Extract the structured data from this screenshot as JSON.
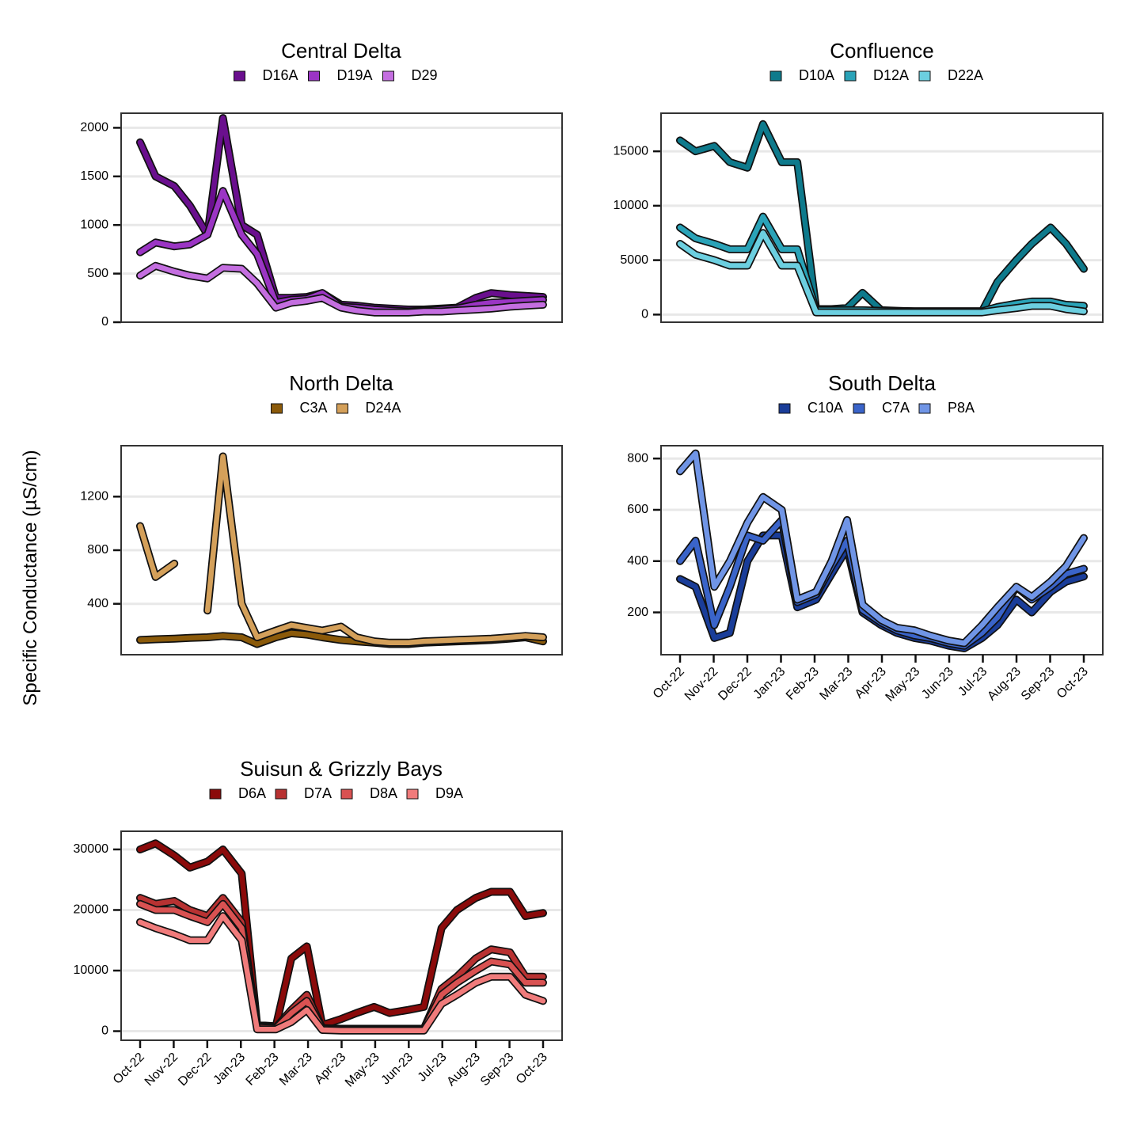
{
  "y_axis_label": "Specific Conductance (µS/cm)",
  "x_tick_labels": [
    "Oct-22",
    "Nov-22",
    "Dec-22",
    "Jan-23",
    "Feb-23",
    "Mar-23",
    "Apr-23",
    "May-23",
    "Jun-23",
    "Jul-23",
    "Aug-23",
    "Sep-23",
    "Oct-23"
  ],
  "chart_data": [
    {
      "type": "line",
      "title": "Central Delta",
      "ylabel": "Specific Conductance (µS/cm)",
      "ylim": [
        0,
        2150
      ],
      "yticks": [
        0,
        500,
        1000,
        1500,
        2000
      ],
      "grid": true,
      "legend_position": "top",
      "show_x_ticks": false,
      "x": [
        "2022-10-01",
        "2022-10-15",
        "2022-11-01",
        "2022-11-15",
        "2022-12-01",
        "2022-12-15",
        "2023-01-01",
        "2023-01-15",
        "2023-02-01",
        "2023-02-15",
        "2023-03-01",
        "2023-03-15",
        "2023-04-01",
        "2023-04-15",
        "2023-05-01",
        "2023-05-15",
        "2023-06-01",
        "2023-06-15",
        "2023-07-01",
        "2023-07-15",
        "2023-08-01",
        "2023-08-15",
        "2023-09-01",
        "2023-09-15",
        "2023-10-01"
      ],
      "series": [
        {
          "name": "D16A",
          "color": "#6a0f8e",
          "values": [
            1850,
            1500,
            1400,
            1200,
            900,
            2100,
            1000,
            900,
            250,
            250,
            260,
            300,
            180,
            170,
            150,
            140,
            130,
            130,
            140,
            150,
            250,
            300,
            280,
            270,
            260
          ]
        },
        {
          "name": "D19A",
          "color": "#9b35c4",
          "values": [
            720,
            820,
            780,
            800,
            900,
            1350,
            900,
            700,
            200,
            230,
            240,
            300,
            160,
            150,
            130,
            120,
            110,
            120,
            130,
            140,
            180,
            200,
            210,
            220,
            230
          ]
        },
        {
          "name": "D29",
          "color": "#c46ee0",
          "values": [
            480,
            580,
            520,
            480,
            450,
            560,
            550,
            400,
            150,
            200,
            220,
            250,
            150,
            120,
            100,
            100,
            100,
            110,
            110,
            120,
            130,
            140,
            160,
            170,
            180
          ]
        }
      ]
    },
    {
      "type": "line",
      "title": "Confluence",
      "ylabel": "Specific Conductance (µS/cm)",
      "ylim": [
        -700,
        18500
      ],
      "yticks": [
        0,
        5000,
        10000,
        15000
      ],
      "grid": true,
      "legend_position": "top",
      "show_x_ticks": false,
      "x": [
        "2022-10-01",
        "2022-10-15",
        "2022-11-01",
        "2022-11-15",
        "2022-12-01",
        "2022-12-15",
        "2023-01-01",
        "2023-01-15",
        "2023-02-01",
        "2023-02-15",
        "2023-03-01",
        "2023-03-15",
        "2023-04-01",
        "2023-04-15",
        "2023-05-01",
        "2023-05-15",
        "2023-06-01",
        "2023-06-15",
        "2023-07-01",
        "2023-07-15",
        "2023-08-01",
        "2023-08-15",
        "2023-09-01",
        "2023-09-15",
        "2023-10-01"
      ],
      "series": [
        {
          "name": "D10A",
          "color": "#0e7a8c",
          "values": [
            16000,
            15000,
            15500,
            14000,
            13500,
            17500,
            14000,
            14000,
            500,
            500,
            600,
            2000,
            400,
            350,
            300,
            300,
            300,
            300,
            300,
            3000,
            5000,
            6500,
            8000,
            6500,
            4200
          ]
        },
        {
          "name": "D12A",
          "color": "#2aa3b8",
          "values": [
            8000,
            7000,
            6500,
            6000,
            6000,
            9000,
            6000,
            6000,
            400,
            400,
            400,
            400,
            350,
            300,
            300,
            300,
            300,
            300,
            300,
            700,
            1000,
            1200,
            1200,
            900,
            800
          ]
        },
        {
          "name": "D22A",
          "color": "#6ccfe0",
          "values": [
            6500,
            5500,
            5000,
            4500,
            4500,
            7500,
            4500,
            4500,
            200,
            200,
            200,
            200,
            200,
            200,
            200,
            200,
            200,
            200,
            200,
            400,
            600,
            800,
            800,
            500,
            300
          ]
        }
      ]
    },
    {
      "type": "line",
      "title": "North Delta",
      "ylabel": "Specific Conductance (µS/cm)",
      "ylim": [
        20,
        1580
      ],
      "yticks": [
        400,
        800,
        1200
      ],
      "grid": true,
      "legend_position": "top",
      "show_x_ticks": false,
      "x": [
        "2022-10-01",
        "2022-10-15",
        "2022-11-01",
        "2022-11-15",
        "2022-12-01",
        "2022-12-15",
        "2023-01-01",
        "2023-01-15",
        "2023-02-01",
        "2023-02-15",
        "2023-03-01",
        "2023-03-15",
        "2023-04-01",
        "2023-04-15",
        "2023-05-01",
        "2023-05-15",
        "2023-06-01",
        "2023-06-15",
        "2023-07-01",
        "2023-07-15",
        "2023-08-01",
        "2023-08-15",
        "2023-09-01",
        "2023-09-15",
        "2023-10-01"
      ],
      "series": [
        {
          "name": "C3A",
          "color": "#8b5a0a",
          "values": [
            130,
            135,
            140,
            145,
            150,
            160,
            150,
            100,
            150,
            180,
            170,
            150,
            130,
            120,
            110,
            100,
            100,
            110,
            115,
            120,
            125,
            130,
            140,
            150,
            120
          ]
        },
        {
          "name": "D24A",
          "color": "#d4a05a",
          "values": [
            980,
            600,
            700,
            null,
            350,
            1500,
            400,
            150,
            200,
            240,
            220,
            200,
            230,
            150,
            120,
            110,
            110,
            120,
            125,
            130,
            135,
            140,
            150,
            160,
            150
          ]
        }
      ]
    },
    {
      "type": "line",
      "title": "South Delta",
      "ylabel": "Specific Conductance (µS/cm)",
      "ylim": [
        35,
        850
      ],
      "yticks": [
        200,
        400,
        600,
        800
      ],
      "grid": true,
      "legend_position": "top",
      "show_x_ticks": true,
      "x": [
        "2022-10-01",
        "2022-10-15",
        "2022-11-01",
        "2022-11-15",
        "2022-12-01",
        "2022-12-15",
        "2023-01-01",
        "2023-01-15",
        "2023-02-01",
        "2023-02-15",
        "2023-03-01",
        "2023-03-15",
        "2023-04-01",
        "2023-04-15",
        "2023-05-01",
        "2023-05-15",
        "2023-06-01",
        "2023-06-15",
        "2023-07-01",
        "2023-07-15",
        "2023-08-01",
        "2023-08-15",
        "2023-09-01",
        "2023-09-15",
        "2023-10-01"
      ],
      "series": [
        {
          "name": "C10A",
          "color": "#1a3d99",
          "values": [
            330,
            300,
            100,
            120,
            400,
            500,
            500,
            220,
            250,
            350,
            450,
            200,
            150,
            120,
            100,
            90,
            70,
            60,
            100,
            150,
            250,
            200,
            280,
            320,
            340
          ]
        },
        {
          "name": "C7A",
          "color": "#3a64c9",
          "values": [
            400,
            480,
            150,
            300,
            500,
            480,
            560,
            240,
            270,
            380,
            480,
            210,
            160,
            130,
            110,
            100,
            80,
            70,
            120,
            180,
            300,
            250,
            300,
            350,
            370
          ]
        },
        {
          "name": "P8A",
          "color": "#7095e6",
          "values": [
            750,
            820,
            300,
            400,
            550,
            650,
            600,
            250,
            280,
            400,
            560,
            230,
            170,
            140,
            130,
            110,
            90,
            80,
            150,
            220,
            300,
            260,
            320,
            380,
            490
          ]
        }
      ]
    },
    {
      "type": "line",
      "title": "Suisun & Grizzly Bays",
      "ylabel": "Specific Conductance (µS/cm)",
      "ylim": [
        -1500,
        33000
      ],
      "yticks": [
        0,
        10000,
        20000,
        30000
      ],
      "grid": true,
      "legend_position": "top",
      "show_x_ticks": true,
      "x": [
        "2022-10-01",
        "2022-10-15",
        "2022-11-01",
        "2022-11-15",
        "2022-12-01",
        "2022-12-15",
        "2023-01-01",
        "2023-01-15",
        "2023-02-01",
        "2023-02-15",
        "2023-03-01",
        "2023-03-15",
        "2023-04-01",
        "2023-04-15",
        "2023-05-01",
        "2023-05-15",
        "2023-06-01",
        "2023-06-15",
        "2023-07-01",
        "2023-07-15",
        "2023-08-01",
        "2023-08-15",
        "2023-09-01",
        "2023-09-15",
        "2023-10-01"
      ],
      "series": [
        {
          "name": "D6A",
          "color": "#8b0a0a",
          "values": [
            30000,
            31000,
            29000,
            27000,
            28000,
            30000,
            26000,
            1000,
            800,
            12000,
            14000,
            1000,
            2000,
            3000,
            4000,
            3000,
            3500,
            4000,
            17000,
            20000,
            22000,
            23000,
            23000,
            19000,
            19500
          ]
        },
        {
          "name": "D7A",
          "color": "#b83232",
          "values": [
            22000,
            21000,
            21500,
            20000,
            19000,
            22000,
            18000,
            800,
            600,
            3500,
            6000,
            500,
            400,
            400,
            400,
            400,
            400,
            400,
            7000,
            9000,
            12000,
            13500,
            13000,
            9000,
            9000
          ]
        },
        {
          "name": "D8A",
          "color": "#d95252",
          "values": [
            21000,
            20000,
            20000,
            19000,
            18000,
            21000,
            17000,
            600,
            500,
            3000,
            5000,
            400,
            300,
            300,
            300,
            300,
            300,
            300,
            6000,
            8000,
            10000,
            11500,
            11000,
            8000,
            8000
          ]
        },
        {
          "name": "D9A",
          "color": "#f07b7b",
          "values": [
            18000,
            17000,
            16000,
            15000,
            15000,
            19000,
            15000,
            300,
            300,
            1500,
            3500,
            200,
            100,
            100,
            100,
            100,
            100,
            100,
            4500,
            6000,
            8000,
            9000,
            9000,
            6000,
            5000
          ]
        }
      ]
    }
  ]
}
